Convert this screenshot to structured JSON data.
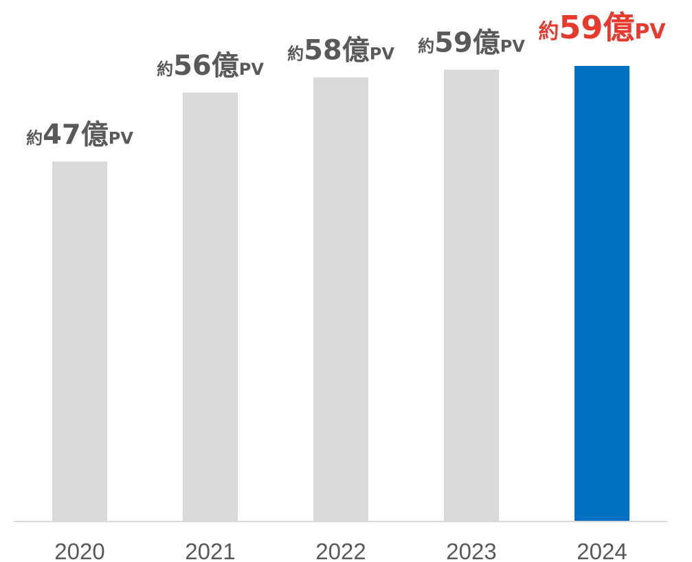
{
  "chart_data": {
    "type": "bar",
    "categories": [
      "2020",
      "2021",
      "2022",
      "2023",
      "2024"
    ],
    "values": [
      47,
      56,
      58,
      59,
      59.5
    ],
    "value_unit": "億PV",
    "data_labels": [
      {
        "prefix": "約",
        "number": "47",
        "suffix": "億",
        "unit": "PV"
      },
      {
        "prefix": "約",
        "number": "56",
        "suffix": "億",
        "unit": "PV"
      },
      {
        "prefix": "約",
        "number": "58",
        "suffix": "億",
        "unit": "PV"
      },
      {
        "prefix": "約",
        "number": "59",
        "suffix": "億",
        "unit": "PV"
      },
      {
        "prefix": "約",
        "number": "59",
        "suffix": "億",
        "unit": "PV"
      }
    ],
    "highlight_index": 4,
    "title": "",
    "xlabel": "",
    "ylabel": "",
    "ylim": [
      0,
      59.5
    ],
    "grid": false,
    "legend": "none",
    "colors": {
      "bar": "#d9d9d9",
      "highlight_bar": "#0070c0",
      "label": "#595959",
      "highlight_label": "#e8392c",
      "axis": "#d9d9d9",
      "tick": "#595959"
    }
  }
}
